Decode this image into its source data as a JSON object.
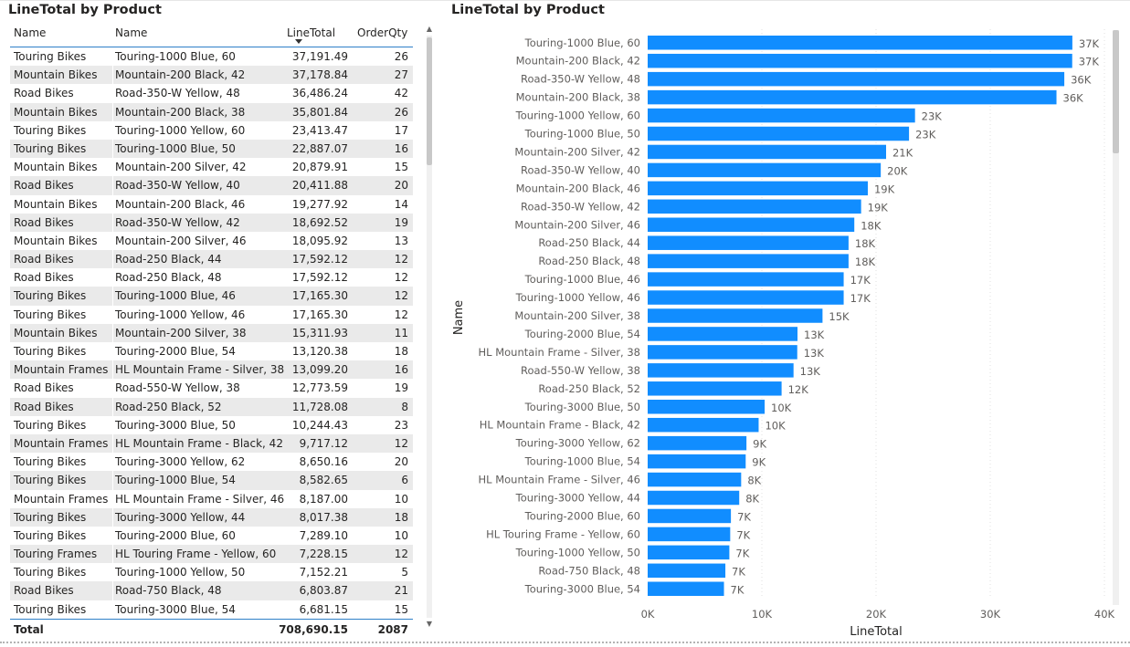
{
  "table_visual": {
    "title": "LineTotal by Product",
    "columns": [
      "Name",
      "Name",
      "LineTotal",
      "OrderQty"
    ],
    "rows": [
      [
        "Touring Bikes",
        "Touring-1000 Blue, 60",
        "37,191.49",
        "26"
      ],
      [
        "Mountain Bikes",
        "Mountain-200 Black, 42",
        "37,178.84",
        "27"
      ],
      [
        "Road Bikes",
        "Road-350-W Yellow, 48",
        "36,486.24",
        "42"
      ],
      [
        "Mountain Bikes",
        "Mountain-200 Black, 38",
        "35,801.84",
        "26"
      ],
      [
        "Touring Bikes",
        "Touring-1000 Yellow, 60",
        "23,413.47",
        "17"
      ],
      [
        "Touring Bikes",
        "Touring-1000 Blue, 50",
        "22,887.07",
        "16"
      ],
      [
        "Mountain Bikes",
        "Mountain-200 Silver, 42",
        "20,879.91",
        "15"
      ],
      [
        "Road Bikes",
        "Road-350-W Yellow, 40",
        "20,411.88",
        "20"
      ],
      [
        "Mountain Bikes",
        "Mountain-200 Black, 46",
        "19,277.92",
        "14"
      ],
      [
        "Road Bikes",
        "Road-350-W Yellow, 42",
        "18,692.52",
        "19"
      ],
      [
        "Mountain Bikes",
        "Mountain-200 Silver, 46",
        "18,095.92",
        "13"
      ],
      [
        "Road Bikes",
        "Road-250 Black, 44",
        "17,592.12",
        "12"
      ],
      [
        "Road Bikes",
        "Road-250 Black, 48",
        "17,592.12",
        "12"
      ],
      [
        "Touring Bikes",
        "Touring-1000 Blue, 46",
        "17,165.30",
        "12"
      ],
      [
        "Touring Bikes",
        "Touring-1000 Yellow, 46",
        "17,165.30",
        "12"
      ],
      [
        "Mountain Bikes",
        "Mountain-200 Silver, 38",
        "15,311.93",
        "11"
      ],
      [
        "Touring Bikes",
        "Touring-2000 Blue, 54",
        "13,120.38",
        "18"
      ],
      [
        "Mountain Frames",
        "HL Mountain Frame - Silver, 38",
        "13,099.20",
        "16"
      ],
      [
        "Road Bikes",
        "Road-550-W Yellow, 38",
        "12,773.59",
        "19"
      ],
      [
        "Road Bikes",
        "Road-250 Black, 52",
        "11,728.08",
        "8"
      ],
      [
        "Touring Bikes",
        "Touring-3000 Blue, 50",
        "10,244.43",
        "23"
      ],
      [
        "Mountain Frames",
        "HL Mountain Frame - Black, 42",
        "9,717.12",
        "12"
      ],
      [
        "Touring Bikes",
        "Touring-3000 Yellow, 62",
        "8,650.16",
        "20"
      ],
      [
        "Touring Bikes",
        "Touring-1000 Blue, 54",
        "8,582.65",
        "6"
      ],
      [
        "Mountain Frames",
        "HL Mountain Frame - Silver, 46",
        "8,187.00",
        "10"
      ],
      [
        "Touring Bikes",
        "Touring-3000 Yellow, 44",
        "8,017.38",
        "18"
      ],
      [
        "Touring Bikes",
        "Touring-2000 Blue, 60",
        "7,289.10",
        "10"
      ],
      [
        "Touring Frames",
        "HL Touring Frame - Yellow, 60",
        "7,228.15",
        "12"
      ],
      [
        "Touring Bikes",
        "Touring-1000 Yellow, 50",
        "7,152.21",
        "5"
      ],
      [
        "Road Bikes",
        "Road-750 Black, 48",
        "6,803.87",
        "21"
      ],
      [
        "Touring Bikes",
        "Touring-3000 Blue, 54",
        "6,681.15",
        "15"
      ]
    ],
    "total": {
      "label": "Total",
      "line_total": "708,690.15",
      "order_qty": "2087"
    }
  },
  "chart_title": "LineTotal by Product",
  "chart_data": {
    "type": "bar",
    "orientation": "horizontal",
    "title": "LineTotal by Product",
    "xlabel": "LineTotal",
    "ylabel": "Name",
    "xlim": [
      0,
      40000
    ],
    "x_ticks": [
      "0K",
      "10K",
      "20K",
      "30K",
      "40K"
    ],
    "grid": true,
    "bar_color": "#118dff",
    "categories": [
      "Touring-1000 Blue, 60",
      "Mountain-200 Black, 42",
      "Road-350-W Yellow, 48",
      "Mountain-200 Black, 38",
      "Touring-1000 Yellow, 60",
      "Touring-1000 Blue, 50",
      "Mountain-200 Silver, 42",
      "Road-350-W Yellow, 40",
      "Mountain-200 Black, 46",
      "Road-350-W Yellow, 42",
      "Mountain-200 Silver, 46",
      "Road-250 Black, 44",
      "Road-250 Black, 48",
      "Touring-1000 Blue, 46",
      "Touring-1000 Yellow, 46",
      "Mountain-200 Silver, 38",
      "Touring-2000 Blue, 54",
      "HL Mountain Frame - Silver, 38",
      "Road-550-W Yellow, 38",
      "Road-250 Black, 52",
      "Touring-3000 Blue, 50",
      "HL Mountain Frame - Black, 42",
      "Touring-3000 Yellow, 62",
      "Touring-1000 Blue, 54",
      "HL Mountain Frame - Silver, 46",
      "Touring-3000 Yellow, 44",
      "Touring-2000 Blue, 60",
      "HL Touring Frame - Yellow, 60",
      "Touring-1000 Yellow, 50",
      "Road-750 Black, 48",
      "Touring-3000 Blue, 54"
    ],
    "values": [
      37191.49,
      37178.84,
      36486.24,
      35801.84,
      23413.47,
      22887.07,
      20879.91,
      20411.88,
      19277.92,
      18692.52,
      18095.92,
      17592.12,
      17592.12,
      17165.3,
      17165.3,
      15311.93,
      13120.38,
      13099.2,
      12773.59,
      11728.08,
      10244.43,
      9717.12,
      8650.16,
      8582.65,
      8187.0,
      8017.38,
      7289.1,
      7228.15,
      7152.21,
      6803.87,
      6681.15
    ],
    "data_labels": [
      "37K",
      "37K",
      "36K",
      "36K",
      "23K",
      "23K",
      "21K",
      "20K",
      "19K",
      "19K",
      "18K",
      "18K",
      "18K",
      "17K",
      "17K",
      "15K",
      "13K",
      "13K",
      "13K",
      "12K",
      "10K",
      "10K",
      "9K",
      "9K",
      "8K",
      "8K",
      "7K",
      "7K",
      "7K",
      "7K",
      "7K"
    ]
  }
}
